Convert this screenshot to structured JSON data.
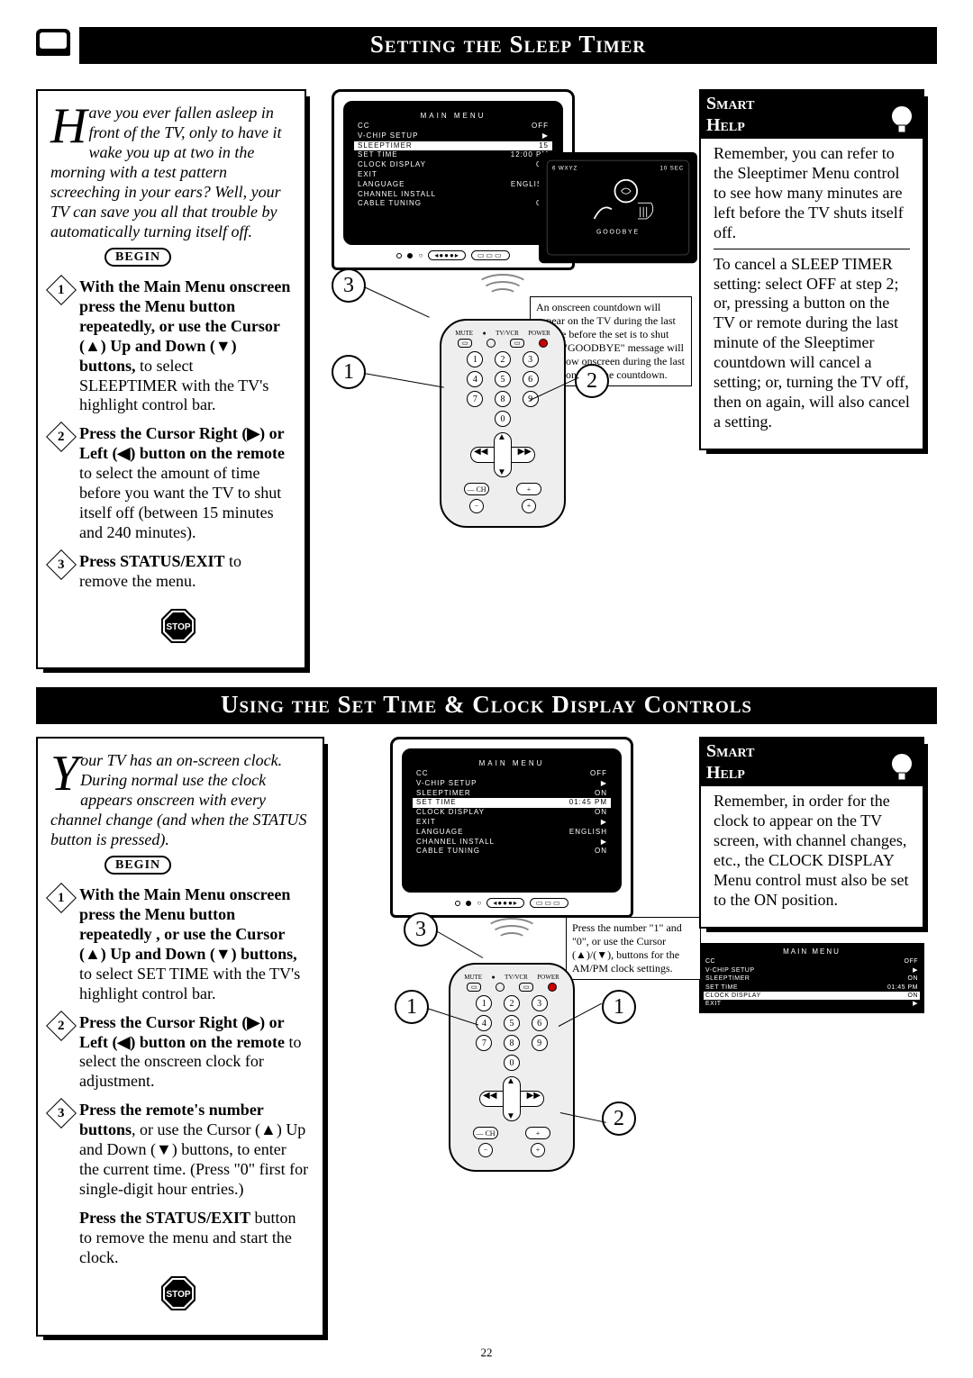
{
  "page_number": "22",
  "section1": {
    "title": "Setting the Sleep Timer",
    "intro": "ave you ever fallen asleep in front of the TV, only to have it wake you up at two in the morning with a test pattern screeching in your ears?  Well, your TV can save you all that trouble by automatically turning itself off.",
    "intro_dropcap": "H",
    "begin_label": "BEGIN",
    "stop_label": "STOP",
    "steps": [
      {
        "n": "1",
        "lead": "With the Main Menu onscreen press the Menu button repeatedly, or use the Cursor (▲) Up and Down (▼) buttons,",
        "tail": " to select SLEEPTIMER with the TV's highlight control bar."
      },
      {
        "n": "2",
        "lead": "Press the Cursor Right (▶) or Left (◀) button on the remote",
        "tail": " to select the amount of time before you want the TV to shut itself off (between 15 minutes and 240 minutes)."
      },
      {
        "n": "3",
        "lead": "Press STATUS/EXIT",
        "tail": " to remove the menu."
      }
    ],
    "tv_menu": {
      "title": "MAIN MENU",
      "rows": [
        {
          "l": "CC",
          "r": "OFF",
          "hl": false
        },
        {
          "l": "V-CHIP SETUP",
          "r": "▶",
          "hl": false
        },
        {
          "l": "SLEEPTIMER",
          "r": "15",
          "hl": true
        },
        {
          "l": "SET TIME",
          "r": "12:00 PM",
          "hl": false
        },
        {
          "l": "CLOCK DISPLAY",
          "r": "ON",
          "hl": false
        },
        {
          "l": "EXIT",
          "r": "▶",
          "hl": false
        },
        {
          "l": "LANGUAGE",
          "r": "ENGLISH",
          "hl": false
        },
        {
          "l": "CHANNEL INSTALL",
          "r": "▶",
          "hl": false
        },
        {
          "l": "CABLE TUNING",
          "r": "ON",
          "hl": false
        }
      ]
    },
    "small_tv_lines": {
      "top_left": "6  WXYZ",
      "top_right": "10 SEC",
      "bottom": "GOODBYE"
    },
    "note": "An onscreen countdown will appear on the TV during the last minute before the set is to shut off. A \"GOODBYE\" message will also show onscreen during the last ten seconds of the countdown.",
    "smart_help": {
      "title": "Smart Help",
      "p1": "Remember, you can refer to the Sleeptimer Menu control to see how many minutes are left before the TV shuts itself off.",
      "p2": "To cancel a SLEEP TIMER setting: select OFF at step 2; or, pressing a button on the TV or remote during the last minute of the Sleeptimer countdown will cancel a setting; or, turning the TV off, then on again, will also cancel a setting."
    },
    "callouts": [
      "1",
      "2",
      "3"
    ]
  },
  "section2": {
    "title": "Using the Set Time  & Clock Display Controls",
    "intro_dropcap": "Y",
    "intro": "our TV has an on-screen clock. During normal use the clock appears onscreen with every channel change (and when the STATUS button is pressed).",
    "begin_label": "BEGIN",
    "stop_label": "STOP",
    "steps": [
      {
        "n": "1",
        "lead": "With the Main Menu onscreen press the Menu button repeatedly , or use the Cursor (▲) Up and Down (▼) buttons,",
        "tail": " to select SET TIME with the TV's highlight control bar."
      },
      {
        "n": "2",
        "lead": "Press the Cursor Right (▶) or Left (◀) button on the remote",
        "tail": " to select the onscreen clock for adjustment."
      },
      {
        "n": "3",
        "lead": "Press the remote's number buttons",
        "tail": ", or use the Cursor (▲) Up and Down (▼) buttons, to enter the current time. (Press \"0\" first for single-digit hour entries.)"
      }
    ],
    "final_para_lead": "Press the STATUS/EXIT",
    "final_para_tail": " button to remove the menu and start the clock.",
    "tv_menu": {
      "title": "MAIN MENU",
      "rows": [
        {
          "l": "CC",
          "r": "OFF",
          "hl": false
        },
        {
          "l": "V-CHIP SETUP",
          "r": "▶",
          "hl": false
        },
        {
          "l": "SLEEPTIMER",
          "r": "ON",
          "hl": false
        },
        {
          "l": "SET TIME",
          "r": "01:45 PM",
          "hl": true
        },
        {
          "l": "CLOCK DISPLAY",
          "r": "ON",
          "hl": false
        },
        {
          "l": "EXIT",
          "r": "▶",
          "hl": false
        },
        {
          "l": "LANGUAGE",
          "r": "ENGLISH",
          "hl": false
        },
        {
          "l": "CHANNEL INSTALL",
          "r": "▶",
          "hl": false
        },
        {
          "l": "CABLE TUNING",
          "r": "ON",
          "hl": false
        }
      ]
    },
    "note": "Press the number \"1\" and \"0\", or use the Cursor (▲)/(▼), buttons for the AM/PM clock settings.",
    "smart_help": {
      "title": "Smart Help",
      "p1": "Remember, in order for the clock to appear on the TV screen, with channel changes, etc.,  the CLOCK DISPLAY Menu control must also be set to the ON position."
    },
    "mini_menu": {
      "title": "MAIN MENU",
      "rows": [
        {
          "l": "CC",
          "r": "OFF",
          "hl": false
        },
        {
          "l": "V-CHIP SETUP",
          "r": "▶",
          "hl": false
        },
        {
          "l": "SLEEPTIMER",
          "r": "ON",
          "hl": false
        },
        {
          "l": "SET TIME",
          "r": "01:45 PM",
          "hl": false
        },
        {
          "l": "CLOCK DISPLAY",
          "r": "ON",
          "hl": true
        },
        {
          "l": "EXIT",
          "r": "▶",
          "hl": false
        }
      ]
    },
    "callouts": [
      "1",
      "1",
      "2",
      "3"
    ]
  },
  "colors": {
    "bg": "#ffffff",
    "fg": "#000000",
    "title_bg": "#000000",
    "title_fg": "#ffffff"
  }
}
